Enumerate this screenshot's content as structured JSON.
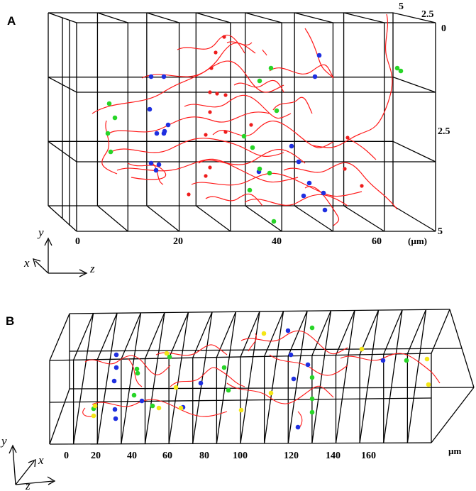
{
  "panels": [
    {
      "label": "A",
      "z_ticks": [
        "0",
        "20",
        "40",
        "60"
      ],
      "unit": "(µm)",
      "y_ticks": [
        "0",
        "2.5",
        "5"
      ],
      "x_ticks": [
        "5",
        "2.5"
      ],
      "axes": [
        "y",
        "x",
        "z"
      ]
    },
    {
      "label": "B",
      "z_ticks": [
        "0",
        "20",
        "40",
        "60",
        "80",
        "100",
        "120",
        "140",
        "160"
      ],
      "unit": "µm",
      "axes": [
        "y",
        "x",
        "z"
      ]
    }
  ],
  "colors": {
    "frame": "#000000",
    "fiber": "#ff1a1a",
    "node_blue": "#1f2fe0",
    "node_green": "#27d527",
    "node_yellow": "#f4e616",
    "node_red": "#ee1c1c"
  }
}
